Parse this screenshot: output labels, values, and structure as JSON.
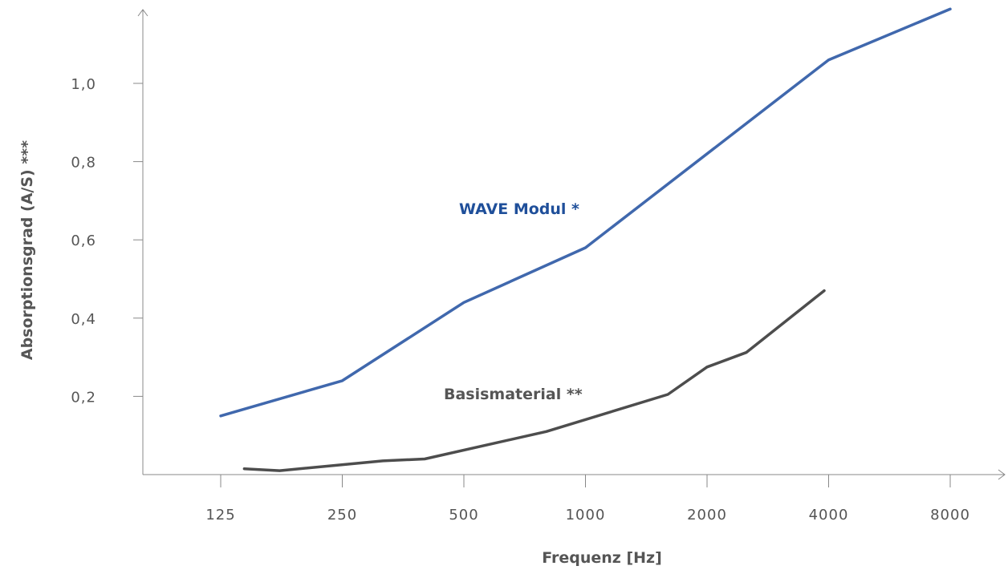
{
  "chart_data": {
    "type": "line",
    "xlabel": "Frequenz [Hz]",
    "ylabel": "Absorptionsgrad (A/S) ***",
    "x_scale": "log2",
    "x_ticks": [
      "125",
      "250",
      "500",
      "1000",
      "2000",
      "4000",
      "8000"
    ],
    "y_ticks": [
      "0,2",
      "0,4",
      "0,6",
      "0,8",
      "1,0"
    ],
    "ylim": [
      0,
      1.2
    ],
    "grid": false,
    "series": [
      {
        "name": "WAVE Modul *",
        "color": "#4068ad",
        "label_color": "#1f4f9a",
        "points": [
          {
            "x": 125,
            "y": 0.15
          },
          {
            "x": 250,
            "y": 0.24
          },
          {
            "x": 500,
            "y": 0.44
          },
          {
            "x": 1000,
            "y": 0.58
          },
          {
            "x": 4000,
            "y": 1.06
          },
          {
            "x": 8000,
            "y": 1.19
          }
        ]
      },
      {
        "name": "Basismaterial **",
        "color": "#4d4d4d",
        "label_color": "#555555",
        "points": [
          {
            "x": 143,
            "y": 0.015
          },
          {
            "x": 175,
            "y": 0.01
          },
          {
            "x": 315,
            "y": 0.035
          },
          {
            "x": 400,
            "y": 0.04
          },
          {
            "x": 800,
            "y": 0.11
          },
          {
            "x": 1600,
            "y": 0.205
          },
          {
            "x": 2000,
            "y": 0.275
          },
          {
            "x": 2500,
            "y": 0.312
          },
          {
            "x": 3900,
            "y": 0.47
          }
        ]
      }
    ]
  }
}
